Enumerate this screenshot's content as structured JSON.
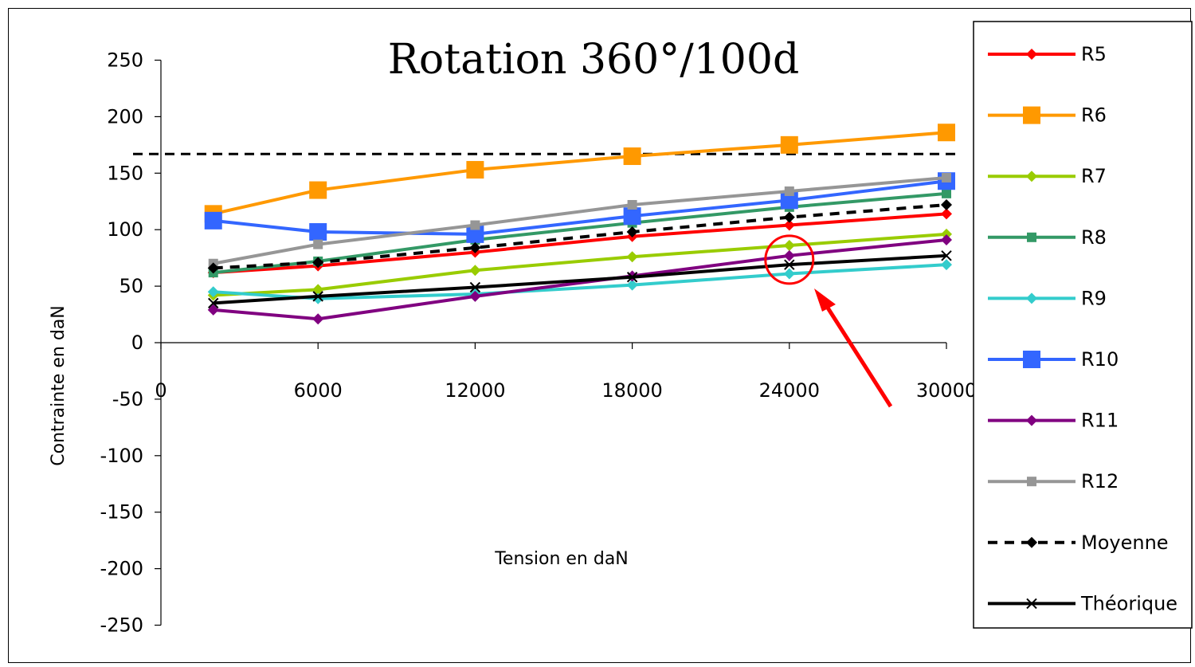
{
  "chart_data": {
    "type": "line",
    "title": "Rotation 360°/100d",
    "xlabel": "Tension en daN",
    "ylabel": "Contrainte en daN",
    "x": [
      2000,
      6000,
      12000,
      18000,
      24000,
      30000
    ],
    "x_ticks": [
      "0",
      "6000",
      "12000",
      "18000",
      "24000",
      "30000"
    ],
    "x_tick_values": [
      0,
      6000,
      12000,
      18000,
      24000,
      30000
    ],
    "y_ticks": [
      "250",
      "200",
      "150",
      "100",
      "50",
      "0",
      "-50",
      "-100",
      "-150",
      "-200",
      "-250"
    ],
    "y_tick_values": [
      250,
      200,
      150,
      100,
      50,
      0,
      -50,
      -100,
      -150,
      -200,
      -250
    ],
    "xlim": [
      0,
      30000
    ],
    "ylim": [
      -250,
      250
    ],
    "grid": false,
    "legend_position": "right",
    "reference_line": {
      "y": 167,
      "style": "dashed",
      "color": "#000000"
    },
    "annotation": {
      "type": "circle-and-arrow",
      "target_x": 24000,
      "target_y": 72,
      "color": "#ff0000"
    },
    "series": [
      {
        "name": "R5",
        "color": "#ff0000",
        "marker": "diamond",
        "markerSize": 7,
        "dash": false,
        "values": [
          62,
          68,
          80,
          94,
          104,
          114
        ]
      },
      {
        "name": "R6",
        "color": "#ff9900",
        "marker": "square",
        "markerSize": 11,
        "dash": false,
        "values": [
          114,
          135,
          153,
          165,
          175,
          186
        ]
      },
      {
        "name": "R7",
        "color": "#99cc00",
        "marker": "diamond",
        "markerSize": 7,
        "dash": false,
        "values": [
          42,
          47,
          64,
          76,
          86,
          96
        ]
      },
      {
        "name": "R8",
        "color": "#339966",
        "marker": "square",
        "markerSize": 6,
        "dash": false,
        "values": [
          62,
          72,
          91,
          106,
          120,
          132
        ]
      },
      {
        "name": "R9",
        "color": "#33cccc",
        "marker": "diamond",
        "markerSize": 7,
        "dash": false,
        "values": [
          45,
          39,
          43,
          51,
          61,
          69
        ]
      },
      {
        "name": "R10",
        "color": "#3366ff",
        "marker": "square",
        "markerSize": 11,
        "dash": false,
        "values": [
          108,
          98,
          96,
          112,
          126,
          143
        ]
      },
      {
        "name": "R11",
        "color": "#800080",
        "marker": "diamond",
        "markerSize": 7,
        "dash": false,
        "values": [
          29,
          21,
          41,
          59,
          77,
          91
        ]
      },
      {
        "name": "R12",
        "color": "#969696",
        "marker": "square",
        "markerSize": 6,
        "dash": false,
        "values": [
          70,
          87,
          104,
          122,
          134,
          146
        ]
      },
      {
        "name": "Moyenne",
        "color": "#000000",
        "marker": "diamond",
        "markerSize": 7,
        "dash": true,
        "values": [
          66,
          71,
          84,
          98,
          111,
          122
        ]
      },
      {
        "name": "Théorique",
        "color": "#000000",
        "marker": "x",
        "markerSize": 6,
        "dash": false,
        "values": [
          35,
          41,
          49,
          58,
          69,
          77
        ]
      }
    ]
  }
}
